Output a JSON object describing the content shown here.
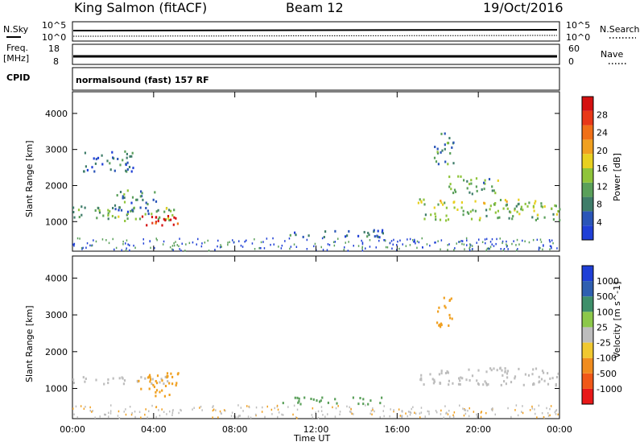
{
  "header": {
    "station": "King Salmon (fitACF)",
    "beam": "Beam 12",
    "date": "19/Oct/2016"
  },
  "top_panels": {
    "nsky_label": "N.Sky",
    "nsky_ticks": [
      "10^5",
      "10^0"
    ],
    "nsearch_label": "N.Search",
    "nsearch_ticks": [
      "10^5",
      "10^0"
    ],
    "freq_label": "Freq.",
    "freq_unit": "[MHz]",
    "freq_ticks": [
      "18",
      "8"
    ],
    "nave_label": "Nave",
    "nave_ticks": [
      "60",
      "0"
    ],
    "cpid_label": "CPID",
    "cpid_text": "normalsound (fast) 157 RF"
  },
  "colors": {
    "power": [
      "#1f3fd6",
      "#2a55b8",
      "#3f7d6a",
      "#5aa05a",
      "#8fc43a",
      "#e8d020",
      "#f0a020",
      "#f07018",
      "#e83818",
      "#d41010"
    ],
    "velocity_neg": "#f0a020",
    "velocity_pos": "#5aa05a",
    "ground": "#bdbdbd"
  },
  "chart_data": [
    {
      "type": "heatmap",
      "name": "power",
      "ylabel": "Slant Range [km]",
      "xlabel": "Time UT",
      "x_ticks": [
        "00:00",
        "04:00",
        "08:00",
        "12:00",
        "16:00",
        "20:00",
        "00:00"
      ],
      "y_ticks": [
        "1000",
        "2000",
        "3000",
        "4000"
      ],
      "ylim": [
        180,
        4600
      ],
      "colorbar": {
        "label": "Power [dB]",
        "ticks": [
          "4",
          "8",
          "12",
          "16",
          "20",
          "24",
          "28"
        ],
        "range": [
          0,
          30
        ]
      },
      "regions": [
        {
          "t0": 0.0,
          "t1": 5.2,
          "r0": 1050,
          "r1": 1450,
          "level": 0.35
        },
        {
          "t0": 2.0,
          "t1": 4.2,
          "r0": 1300,
          "r1": 1900,
          "level": 0.25
        },
        {
          "t0": 3.2,
          "t1": 5.2,
          "r0": 850,
          "r1": 1200,
          "level": 0.9
        },
        {
          "t0": 10.3,
          "t1": 15.5,
          "r0": 600,
          "r1": 800,
          "level": 0.2
        },
        {
          "t0": 17.0,
          "t1": 24.0,
          "r0": 1050,
          "r1": 1650,
          "level": 0.45
        },
        {
          "t0": 18.5,
          "t1": 21.0,
          "r0": 1800,
          "r1": 2300,
          "level": 0.35
        },
        {
          "t0": 17.8,
          "t1": 18.8,
          "r0": 2600,
          "r1": 3500,
          "level": 0.3
        },
        {
          "t0": 0.5,
          "t1": 3.0,
          "r0": 2400,
          "r1": 3000,
          "level": 0.2
        }
      ]
    },
    {
      "type": "heatmap",
      "name": "velocity",
      "ylabel": "Slant Range [km]",
      "xlabel": "Time UT",
      "x_ticks": [
        "00:00",
        "04:00",
        "08:00",
        "12:00",
        "16:00",
        "20:00",
        "00:00"
      ],
      "y_ticks": [
        "1000",
        "2000",
        "3000",
        "4000"
      ],
      "ylim": [
        180,
        4600
      ],
      "colorbar": {
        "label": "Velocity [m s^-1]",
        "ticks": [
          "1000",
          "500",
          "100",
          "25",
          "-25",
          "-100",
          "-500",
          "-1000"
        ],
        "range": [
          -1000,
          1000
        ]
      },
      "regions": [
        {
          "t0": 0.0,
          "t1": 5.2,
          "r0": 1150,
          "r1": 1350,
          "kind": "ground"
        },
        {
          "t0": 3.2,
          "t1": 5.2,
          "r0": 800,
          "r1": 1500,
          "kind": "neg"
        },
        {
          "t0": 10.3,
          "t1": 15.5,
          "r0": 600,
          "r1": 800,
          "kind": "pos"
        },
        {
          "t0": 17.0,
          "t1": 24.0,
          "r0": 1100,
          "r1": 1600,
          "kind": "ground"
        },
        {
          "t0": 17.9,
          "t1": 18.7,
          "r0": 2600,
          "r1": 3500,
          "kind": "neg"
        }
      ]
    }
  ]
}
